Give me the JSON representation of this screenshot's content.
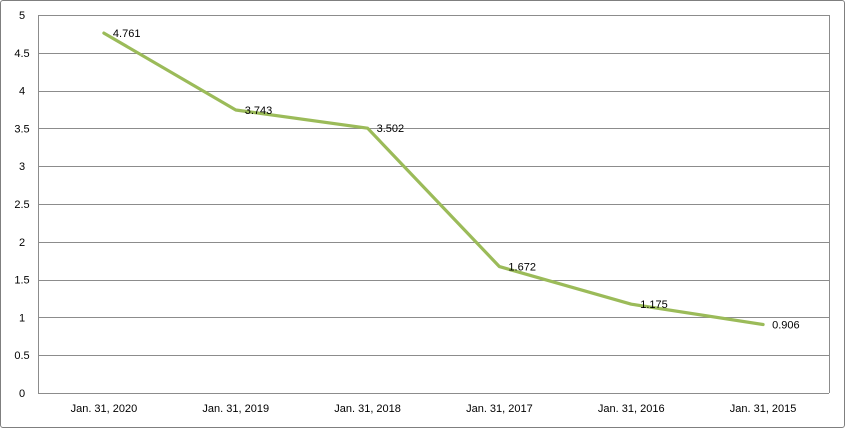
{
  "chart_data": {
    "type": "line",
    "title": "",
    "xlabel": "",
    "ylabel": "",
    "categories": [
      "Jan. 31, 2020",
      "Jan. 31, 2019",
      "Jan. 31, 2018",
      "Jan. 31, 2017",
      "Jan. 31, 2016",
      "Jan. 31, 2015"
    ],
    "values": [
      4.761,
      3.743,
      3.502,
      1.672,
      1.175,
      0.906
    ],
    "data_labels": [
      "4.761",
      "3.743",
      "3.502",
      "1.672",
      "1.175",
      "0.906"
    ],
    "ylim": [
      0,
      5
    ],
    "y_ticks": [
      0,
      0.5,
      1,
      1.5,
      2,
      2.5,
      3,
      3.5,
      4,
      4.5,
      5
    ],
    "y_tick_labels": [
      "0",
      "0.5",
      "1",
      "1.5",
      "2",
      "2.5",
      "3",
      "3.5",
      "4",
      "4.5",
      "5"
    ],
    "grid": true,
    "markers": false,
    "legend": "none",
    "colors": {
      "line": "#9BBB59",
      "gridline": "#8C8C8C",
      "plot_border": "#8C8C8C",
      "text": "#000000",
      "background": "#FFFFFF",
      "frame_border": "#7F7F7F"
    }
  }
}
